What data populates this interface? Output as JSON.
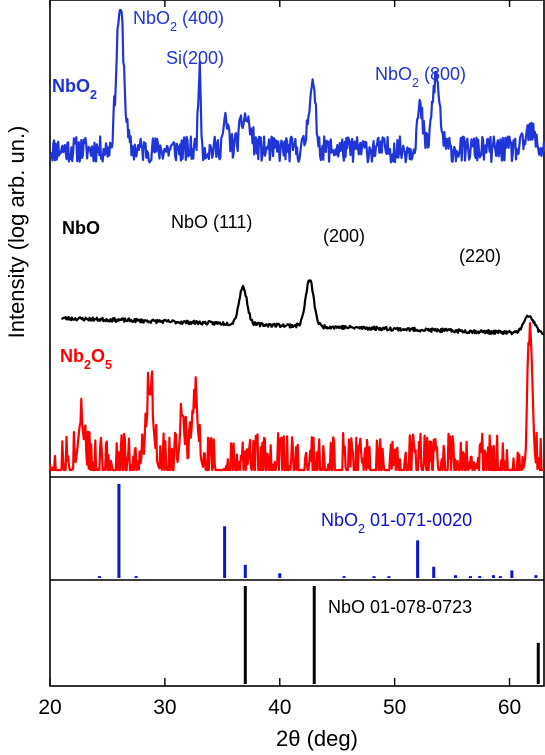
{
  "chart_data": {
    "type": "line",
    "xlabel": "2θ (deg)",
    "ylabel": "Intensity (log arb. un.)",
    "xlim": [
      20,
      63
    ],
    "xticks": [
      20,
      30,
      40,
      50,
      60
    ],
    "ylog": true,
    "grid": false,
    "legend": "inline labels",
    "colors": {
      "NbO2": "#1f35d8",
      "NbO": "#000000",
      "Nb2O5": "#ff0000"
    },
    "series": [
      {
        "name": "NbO2",
        "color": "#1f35d8",
        "baseline": 120,
        "noise": 18,
        "seed": 11,
        "x_range": [
          20,
          63
        ],
        "peaks": [
          {
            "x": 26.1,
            "h": 1.0,
            "w": 0.32
          },
          {
            "x": 33.0,
            "h": 0.55,
            "w": 0.12
          },
          {
            "x": 35.3,
            "h": 0.18,
            "w": 0.25
          },
          {
            "x": 37.0,
            "h": 0.22,
            "w": 0.45
          },
          {
            "x": 42.8,
            "h": 0.45,
            "w": 0.3
          },
          {
            "x": 52.2,
            "h": 0.28,
            "w": 0.25
          },
          {
            "x": 53.6,
            "h": 0.5,
            "w": 0.32
          },
          {
            "x": 61.8,
            "h": 0.12,
            "w": 0.4
          }
        ]
      },
      {
        "name": "NbO",
        "color": "#000000",
        "baseline": 26,
        "noise": 6,
        "seed": 23,
        "x_range": [
          21,
          63
        ],
        "peaks": [
          {
            "x": 36.8,
            "h": 0.6,
            "w": 0.35
          },
          {
            "x": 42.6,
            "h": 0.75,
            "w": 0.35
          },
          {
            "x": 61.7,
            "h": 0.28,
            "w": 0.45
          }
        ]
      },
      {
        "name": "Nb2O5",
        "color": "#ff0000",
        "baseline": 1,
        "noise": 30,
        "seed": 37,
        "x_range": [
          20,
          63
        ],
        "peaks": [
          {
            "x": 22.7,
            "h": 0.35,
            "w": 0.25
          },
          {
            "x": 28.7,
            "h": 0.55,
            "w": 0.3
          },
          {
            "x": 31.5,
            "h": 0.4,
            "w": 0.2
          },
          {
            "x": 32.6,
            "h": 0.45,
            "w": 0.3
          },
          {
            "x": 61.8,
            "h": 1.0,
            "w": 0.2
          }
        ]
      }
    ],
    "series_labels": [
      {
        "prefix": "NbO",
        "sub": "2",
        "suffix": "",
        "color": "#1f35d8"
      },
      {
        "prefix": "NbO",
        "sub": "",
        "suffix": "",
        "color": "#000000"
      },
      {
        "prefix": "Nb",
        "sub": "2",
        "mid": "O",
        "sub2": "5",
        "color": "#ff0000"
      }
    ],
    "annotations": [
      {
        "prefix": "NbO",
        "sub": "2",
        "suffix": " (400)",
        "color": "#1f35d8"
      },
      {
        "prefix": "Si(200)",
        "sub": "",
        "suffix": "",
        "color": "#1f35d8"
      },
      {
        "prefix": "NbO",
        "sub": "2",
        "suffix": " (800)",
        "color": "#1f35d8"
      },
      {
        "prefix": "NbO (111)",
        "sub": "",
        "suffix": "",
        "color": "#000000"
      },
      {
        "prefix": "(200)",
        "sub": "",
        "suffix": "",
        "color": "#000000"
      },
      {
        "prefix": "(220)",
        "sub": "",
        "suffix": "",
        "color": "#000000"
      }
    ],
    "reference_patterns": [
      {
        "label_prefix": "NbO",
        "label_sub": "2",
        "label_suffix": " 01-071-0020",
        "color": "#0a14d0",
        "lines": [
          {
            "x": 26.0,
            "i": 100
          },
          {
            "x": 35.2,
            "i": 55
          },
          {
            "x": 37.0,
            "i": 14
          },
          {
            "x": 40.0,
            "i": 5
          },
          {
            "x": 52.0,
            "i": 40
          },
          {
            "x": 53.4,
            "i": 12
          },
          {
            "x": 60.2,
            "i": 8
          },
          {
            "x": 24.3,
            "i": 2
          },
          {
            "x": 27.5,
            "i": 2
          },
          {
            "x": 45.6,
            "i": 2
          },
          {
            "x": 48.2,
            "i": 2
          },
          {
            "x": 49.5,
            "i": 2
          },
          {
            "x": 55.3,
            "i": 3
          },
          {
            "x": 56.6,
            "i": 2
          },
          {
            "x": 57.4,
            "i": 2
          },
          {
            "x": 58.6,
            "i": 3
          },
          {
            "x": 59.2,
            "i": 2
          },
          {
            "x": 62.3,
            "i": 3
          }
        ]
      },
      {
        "label_prefix": "NbO 01-078-0723",
        "label_sub": "",
        "label_suffix": "",
        "color": "#000000",
        "lines": [
          {
            "x": 37.0,
            "i": 100
          },
          {
            "x": 43.0,
            "i": 100
          },
          {
            "x": 62.5,
            "i": 42
          }
        ]
      }
    ]
  }
}
